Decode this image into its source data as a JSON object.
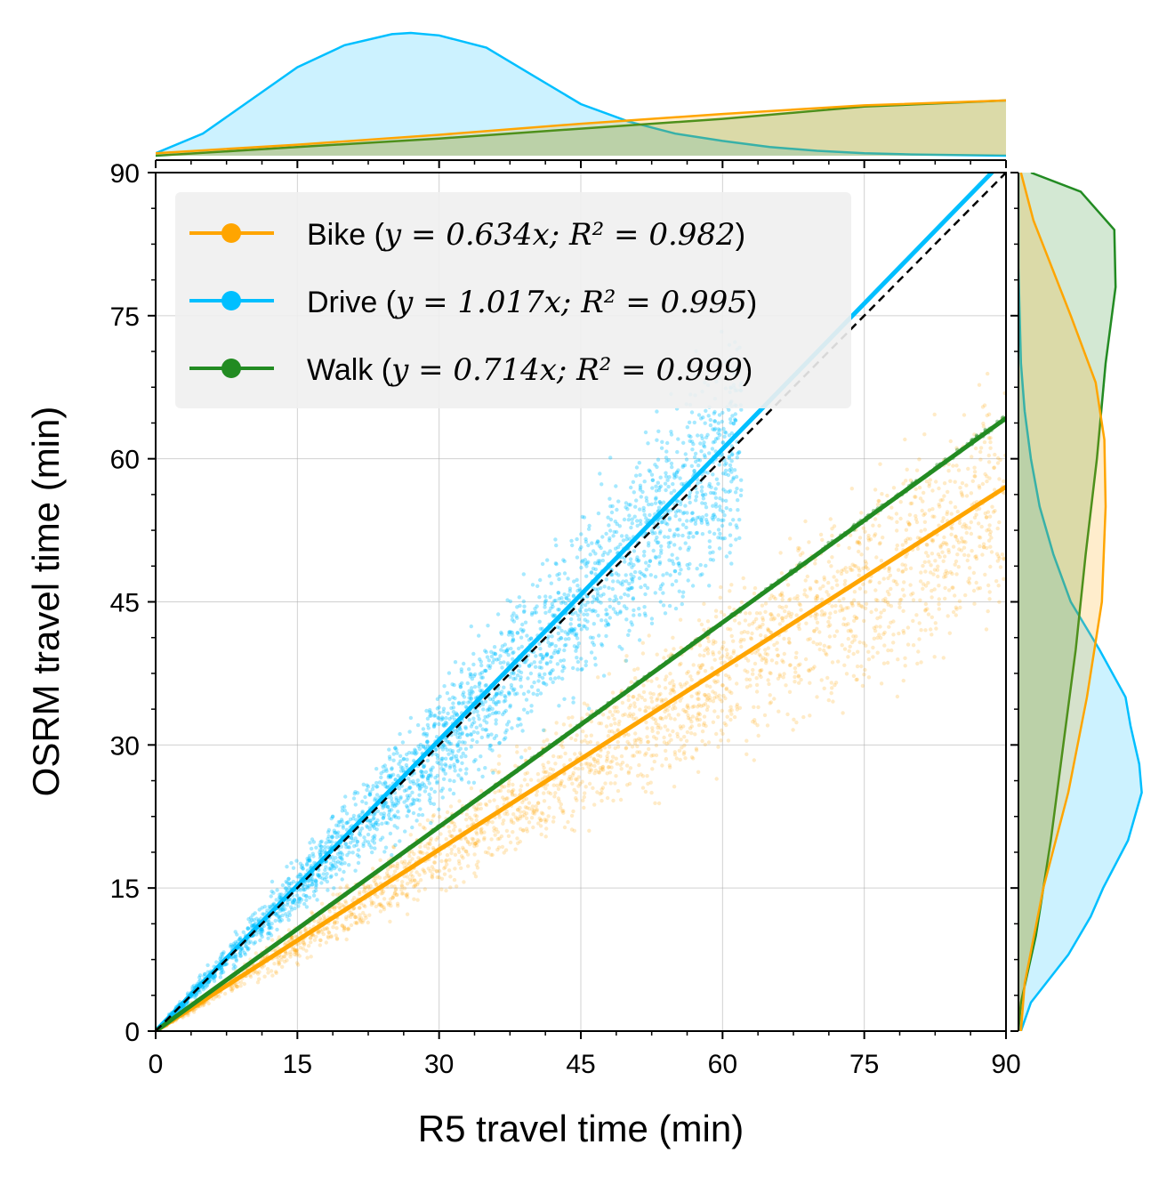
{
  "chart_data": {
    "type": "scatter",
    "xlabel": "R5 travel time (min)",
    "ylabel": "OSRM travel time (min)",
    "xlim": [
      0,
      90
    ],
    "ylim": [
      0,
      90
    ],
    "xticks": [
      "0",
      "15",
      "30",
      "45",
      "60",
      "75",
      "90"
    ],
    "yticks": [
      "0",
      "15",
      "30",
      "45",
      "60",
      "75",
      "90"
    ],
    "grid": true,
    "legend_position": "top-left",
    "identity_line": {
      "style": "dashed",
      "color": "#000000",
      "x": [
        0,
        90
      ],
      "y": [
        0,
        90
      ]
    },
    "series": [
      {
        "name": "Bike",
        "color": "#FFA500",
        "legend_label": "Bike (y = 0.634x; R² = 0.982)",
        "legend_prefix": "Bike (",
        "legend_math": "y = 0.634x; R² = 0.982",
        "legend_suffix": ")",
        "slope": 0.634,
        "r2": 0.982,
        "scatter_band": {
          "x_range": [
            0,
            90
          ],
          "ratio_min": 0.42,
          "ratio_max": 0.82,
          "y_max": 72
        }
      },
      {
        "name": "Drive",
        "color": "#00BFFF",
        "legend_label": "Drive (y = 1.017x; R² = 0.995)",
        "legend_prefix": "Drive (",
        "legend_math": "y = 1.017x; R² = 0.995",
        "legend_suffix": ")",
        "slope": 1.017,
        "r2": 0.995,
        "scatter_band": {
          "x_range": [
            0,
            62
          ],
          "ratio_min": 0.72,
          "ratio_max": 1.28,
          "y_max": 82
        }
      },
      {
        "name": "Walk",
        "color": "#228B22",
        "legend_label": "Walk (y = 0.714x; R² = 0.999)",
        "legend_prefix": "Walk (",
        "legend_math": "y = 0.714x; R² = 0.999",
        "legend_suffix": ")",
        "slope": 0.714,
        "r2": 0.999,
        "scatter_band": {
          "x_range": [
            0,
            90
          ],
          "ratio_min": 0.71,
          "ratio_max": 0.72,
          "y_max": 65
        }
      }
    ],
    "marginal_x": {
      "type": "kde",
      "Drive": {
        "x": [
          0,
          5,
          10,
          15,
          20,
          25,
          27,
          30,
          35,
          40,
          45,
          50,
          55,
          60,
          65,
          70,
          75,
          80,
          90
        ],
        "density": [
          0.02,
          0.18,
          0.45,
          0.72,
          0.9,
          0.99,
          1.0,
          0.98,
          0.88,
          0.65,
          0.42,
          0.28,
          0.18,
          0.12,
          0.07,
          0.04,
          0.02,
          0.01,
          0.0
        ]
      },
      "Bike": {
        "x": [
          0,
          15,
          30,
          45,
          60,
          75,
          90
        ],
        "density": [
          0.02,
          0.09,
          0.17,
          0.26,
          0.34,
          0.41,
          0.45
        ]
      },
      "Walk": {
        "x": [
          0,
          15,
          30,
          45,
          60,
          75,
          90
        ],
        "density": [
          0.0,
          0.07,
          0.14,
          0.22,
          0.3,
          0.4,
          0.45
        ]
      }
    },
    "marginal_y": {
      "type": "kde",
      "Drive": {
        "y": [
          0,
          3,
          8,
          12,
          15,
          20,
          25,
          28,
          32,
          35,
          40,
          45,
          50,
          55,
          60,
          65,
          70,
          75,
          80,
          90
        ],
        "density": [
          0.02,
          0.1,
          0.4,
          0.58,
          0.68,
          0.88,
          0.99,
          0.97,
          0.9,
          0.86,
          0.65,
          0.42,
          0.28,
          0.17,
          0.1,
          0.05,
          0.02,
          0.01,
          0.0,
          0.0
        ]
      },
      "Bike": {
        "y": [
          0,
          5,
          15,
          25,
          35,
          45,
          55,
          62,
          68,
          75,
          85,
          90
        ],
        "density": [
          0.02,
          0.05,
          0.2,
          0.4,
          0.55,
          0.67,
          0.7,
          0.69,
          0.62,
          0.42,
          0.12,
          0.02
        ]
      },
      "Walk": {
        "y": [
          0,
          3,
          10,
          20,
          30,
          40,
          50,
          60,
          70,
          78,
          84,
          88,
          90
        ],
        "density": [
          0.0,
          0.02,
          0.14,
          0.26,
          0.36,
          0.46,
          0.54,
          0.63,
          0.7,
          0.78,
          0.77,
          0.5,
          0.1
        ]
      }
    }
  }
}
